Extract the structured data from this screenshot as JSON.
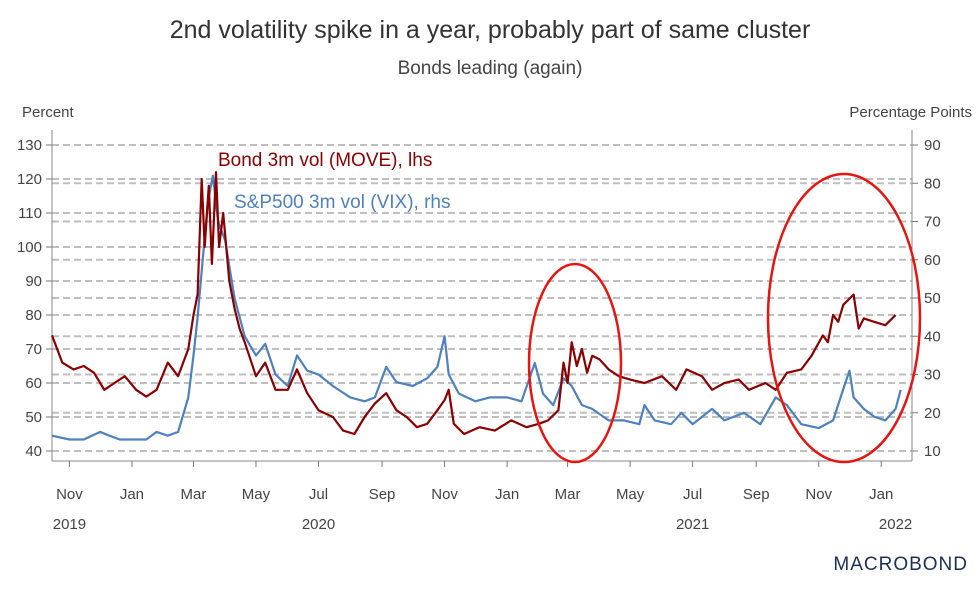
{
  "title": "2nd volatility spike in a year, probably part of same cluster",
  "subtitle": "Bonds leading (again)",
  "brand": "MACROBOND",
  "colors": {
    "move": "#8b0000",
    "vix": "#4f81bd",
    "circle": "#e8140f",
    "grid": "#bfbfbf"
  },
  "chart_data": {
    "type": "line",
    "title": "2nd volatility spike in a year, probably part of same cluster",
    "subtitle": "Bonds leading (again)",
    "ylabel_left": "Percent",
    "ylabel_right": "Percentage Points",
    "ylim_left": [
      40,
      130
    ],
    "ylim_right": [
      10,
      90
    ],
    "yticks_left": [
      40,
      50,
      60,
      70,
      80,
      90,
      100,
      110,
      120,
      130
    ],
    "yticks_right": [
      10,
      20,
      30,
      40,
      50,
      60,
      70,
      80,
      90
    ],
    "xlim": [
      "2019-10-15",
      "2022-01-31"
    ],
    "x_ticks": [
      {
        "label": "Nov",
        "date": "2019-11-01"
      },
      {
        "label": "Jan",
        "date": "2020-01-01"
      },
      {
        "label": "Mar",
        "date": "2020-03-01"
      },
      {
        "label": "May",
        "date": "2020-05-01"
      },
      {
        "label": "Jul",
        "date": "2020-07-01"
      },
      {
        "label": "Sep",
        "date": "2020-09-01"
      },
      {
        "label": "Nov",
        "date": "2020-11-01"
      },
      {
        "label": "Jan",
        "date": "2021-01-01"
      },
      {
        "label": "Mar",
        "date": "2021-03-01"
      },
      {
        "label": "May",
        "date": "2021-05-01"
      },
      {
        "label": "Jul",
        "date": "2021-07-01"
      },
      {
        "label": "Sep",
        "date": "2021-09-01"
      },
      {
        "label": "Nov",
        "date": "2021-11-01"
      },
      {
        "label": "Jan",
        "date": "2022-01-01"
      }
    ],
    "year_labels": [
      {
        "label": "2019",
        "date": "2019-11-01"
      },
      {
        "label": "2020",
        "date": "2020-07-01"
      },
      {
        "label": "2021",
        "date": "2021-07-01"
      },
      {
        "label": "2022",
        "date": "2022-01-15"
      }
    ],
    "grid": true,
    "series": [
      {
        "name": "Bond 3m vol (MOVE), lhs",
        "axis": "left",
        "points": [
          [
            "2019-10-15",
            74
          ],
          [
            "2019-10-25",
            66
          ],
          [
            "2019-11-05",
            64
          ],
          [
            "2019-11-15",
            65
          ],
          [
            "2019-11-25",
            63
          ],
          [
            "2019-12-05",
            58
          ],
          [
            "2019-12-15",
            60
          ],
          [
            "2019-12-25",
            62
          ],
          [
            "2020-01-05",
            58
          ],
          [
            "2020-01-15",
            56
          ],
          [
            "2020-01-25",
            58
          ],
          [
            "2020-02-05",
            66
          ],
          [
            "2020-02-15",
            62
          ],
          [
            "2020-02-25",
            70
          ],
          [
            "2020-03-01",
            80
          ],
          [
            "2020-03-05",
            86
          ],
          [
            "2020-03-09",
            120
          ],
          [
            "2020-03-12",
            100
          ],
          [
            "2020-03-16",
            118
          ],
          [
            "2020-03-19",
            95
          ],
          [
            "2020-03-23",
            122
          ],
          [
            "2020-03-26",
            100
          ],
          [
            "2020-03-30",
            110
          ],
          [
            "2020-04-05",
            90
          ],
          [
            "2020-04-10",
            82
          ],
          [
            "2020-04-15",
            76
          ],
          [
            "2020-04-20",
            72
          ],
          [
            "2020-05-01",
            62
          ],
          [
            "2020-05-10",
            66
          ],
          [
            "2020-05-20",
            58
          ],
          [
            "2020-06-01",
            58
          ],
          [
            "2020-06-10",
            64
          ],
          [
            "2020-06-20",
            57
          ],
          [
            "2020-07-01",
            52
          ],
          [
            "2020-07-15",
            50
          ],
          [
            "2020-07-25",
            46
          ],
          [
            "2020-08-05",
            45
          ],
          [
            "2020-08-15",
            50
          ],
          [
            "2020-08-25",
            54
          ],
          [
            "2020-09-05",
            57
          ],
          [
            "2020-09-15",
            52
          ],
          [
            "2020-09-25",
            50
          ],
          [
            "2020-10-05",
            47
          ],
          [
            "2020-10-15",
            48
          ],
          [
            "2020-10-25",
            52
          ],
          [
            "2020-11-01",
            55
          ],
          [
            "2020-11-05",
            58
          ],
          [
            "2020-11-10",
            48
          ],
          [
            "2020-11-20",
            45
          ],
          [
            "2020-12-05",
            47
          ],
          [
            "2020-12-20",
            46
          ],
          [
            "2021-01-05",
            49
          ],
          [
            "2021-01-20",
            47
          ],
          [
            "2021-02-01",
            48
          ],
          [
            "2021-02-10",
            49
          ],
          [
            "2021-02-20",
            52
          ],
          [
            "2021-02-25",
            66
          ],
          [
            "2021-03-01",
            60
          ],
          [
            "2021-03-05",
            72
          ],
          [
            "2021-03-10",
            65
          ],
          [
            "2021-03-15",
            70
          ],
          [
            "2021-03-20",
            63
          ],
          [
            "2021-03-25",
            68
          ],
          [
            "2021-04-01",
            67
          ],
          [
            "2021-04-10",
            64
          ],
          [
            "2021-04-20",
            62
          ],
          [
            "2021-05-01",
            61
          ],
          [
            "2021-05-15",
            60
          ],
          [
            "2021-06-01",
            62
          ],
          [
            "2021-06-15",
            58
          ],
          [
            "2021-06-25",
            64
          ],
          [
            "2021-07-10",
            62
          ],
          [
            "2021-07-20",
            58
          ],
          [
            "2021-08-01",
            60
          ],
          [
            "2021-08-15",
            61
          ],
          [
            "2021-08-25",
            58
          ],
          [
            "2021-09-10",
            60
          ],
          [
            "2021-09-20",
            58
          ],
          [
            "2021-10-01",
            63
          ],
          [
            "2021-10-15",
            64
          ],
          [
            "2021-10-25",
            68
          ],
          [
            "2021-11-05",
            74
          ],
          [
            "2021-11-10",
            72
          ],
          [
            "2021-11-15",
            80
          ],
          [
            "2021-11-20",
            78
          ],
          [
            "2021-11-25",
            83
          ],
          [
            "2021-12-05",
            86
          ],
          [
            "2021-12-10",
            76
          ],
          [
            "2021-12-15",
            79
          ],
          [
            "2021-12-25",
            78
          ],
          [
            "2022-01-05",
            77
          ],
          [
            "2022-01-15",
            80
          ]
        ]
      },
      {
        "name": "S&P500 3m vol (VIX), rhs",
        "axis": "right",
        "points": [
          [
            "2019-10-15",
            14
          ],
          [
            "2019-11-01",
            13
          ],
          [
            "2019-11-15",
            13
          ],
          [
            "2019-12-01",
            15
          ],
          [
            "2019-12-10",
            14
          ],
          [
            "2019-12-20",
            13
          ],
          [
            "2020-01-05",
            13
          ],
          [
            "2020-01-15",
            13
          ],
          [
            "2020-01-25",
            15
          ],
          [
            "2020-02-05",
            14
          ],
          [
            "2020-02-15",
            15
          ],
          [
            "2020-02-25",
            24
          ],
          [
            "2020-03-01",
            35
          ],
          [
            "2020-03-05",
            45
          ],
          [
            "2020-03-10",
            60
          ],
          [
            "2020-03-15",
            75
          ],
          [
            "2020-03-20",
            82
          ],
          [
            "2020-03-25",
            70
          ],
          [
            "2020-04-01",
            65
          ],
          [
            "2020-04-10",
            50
          ],
          [
            "2020-04-20",
            40
          ],
          [
            "2020-05-01",
            35
          ],
          [
            "2020-05-10",
            38
          ],
          [
            "2020-05-20",
            30
          ],
          [
            "2020-06-01",
            27
          ],
          [
            "2020-06-10",
            35
          ],
          [
            "2020-06-20",
            31
          ],
          [
            "2020-07-01",
            30
          ],
          [
            "2020-07-15",
            27
          ],
          [
            "2020-08-01",
            24
          ],
          [
            "2020-08-15",
            23
          ],
          [
            "2020-08-25",
            24
          ],
          [
            "2020-09-05",
            32
          ],
          [
            "2020-09-15",
            28
          ],
          [
            "2020-10-01",
            27
          ],
          [
            "2020-10-15",
            29
          ],
          [
            "2020-10-25",
            32
          ],
          [
            "2020-11-01",
            40
          ],
          [
            "2020-11-05",
            30
          ],
          [
            "2020-11-15",
            25
          ],
          [
            "2020-12-01",
            23
          ],
          [
            "2020-12-15",
            24
          ],
          [
            "2021-01-01",
            24
          ],
          [
            "2021-01-15",
            23
          ],
          [
            "2021-01-28",
            33
          ],
          [
            "2021-02-05",
            25
          ],
          [
            "2021-02-15",
            22
          ],
          [
            "2021-02-25",
            29
          ],
          [
            "2021-03-05",
            27
          ],
          [
            "2021-03-15",
            22
          ],
          [
            "2021-03-25",
            21
          ],
          [
            "2021-04-10",
            18
          ],
          [
            "2021-04-25",
            18
          ],
          [
            "2021-05-10",
            17
          ],
          [
            "2021-05-15",
            22
          ],
          [
            "2021-05-25",
            18
          ],
          [
            "2021-06-10",
            17
          ],
          [
            "2021-06-20",
            20
          ],
          [
            "2021-07-01",
            17
          ],
          [
            "2021-07-20",
            21
          ],
          [
            "2021-08-01",
            18
          ],
          [
            "2021-08-20",
            20
          ],
          [
            "2021-09-05",
            17
          ],
          [
            "2021-09-20",
            24
          ],
          [
            "2021-10-01",
            22
          ],
          [
            "2021-10-15",
            17
          ],
          [
            "2021-11-01",
            16
          ],
          [
            "2021-11-15",
            18
          ],
          [
            "2021-11-26",
            27
          ],
          [
            "2021-12-01",
            31
          ],
          [
            "2021-12-05",
            24
          ],
          [
            "2021-12-15",
            21
          ],
          [
            "2021-12-25",
            19
          ],
          [
            "2022-01-05",
            18
          ],
          [
            "2022-01-15",
            21
          ],
          [
            "2022-01-20",
            26
          ]
        ]
      }
    ]
  }
}
